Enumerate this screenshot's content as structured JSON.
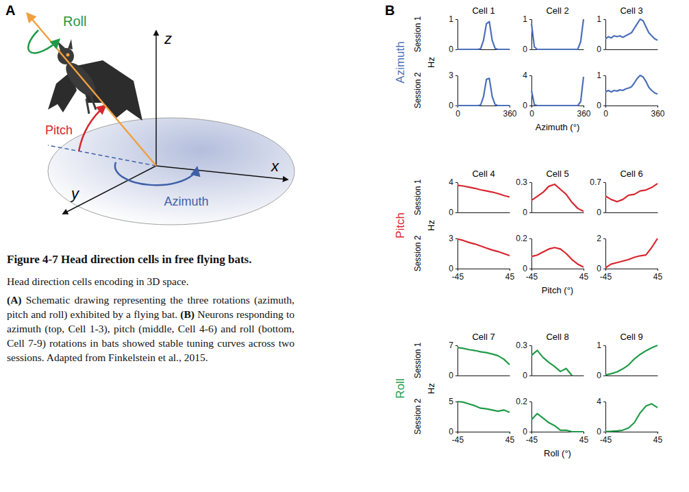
{
  "panel_labels": [
    "A",
    "B"
  ],
  "diagram": {
    "rotations": [
      "Roll",
      "Pitch",
      "Azimuth"
    ],
    "axes": [
      "z",
      "x",
      "y"
    ]
  },
  "caption": {
    "title": "Figure 4-7 Head direction cells in free flying bats.",
    "paragraphs": [
      [
        "Head direction cells encoding in 3D space."
      ],
      [
        "(A)",
        " Schematic drawing representing the three rotations (azimuth, pitch and roll) exhibited by a flying bat. ",
        "(B)",
        " Neurons responding to azimuth (top, Cell 1-3), pitch (middle, Cell 4-6) and roll (bottom, Cell 7-9) rotations in bats showed stable tuning curves across two sessions. Adapted from Finkelstein et al., 2015."
      ]
    ]
  },
  "groups": [
    {
      "name": "Azimuth",
      "ylabel": "Hz",
      "xlabel": "Azimuth (°)",
      "sessions": [
        "Session 1",
        "Session 2"
      ]
    },
    {
      "name": "Pitch",
      "ylabel": "Hz",
      "xlabel": "Pitch (°)",
      "sessions": [
        "Session 1",
        "Session 2"
      ]
    },
    {
      "name": "Roll",
      "ylabel": "Hz",
      "xlabel": "Roll (°)",
      "sessions": [
        "Session 1",
        "Session 2"
      ]
    }
  ],
  "chart_data": [
    {
      "type": "line",
      "title": "Cell 1",
      "color": "#4c6fb8",
      "x": [
        0,
        20,
        40,
        60,
        80,
        100,
        120,
        140,
        160,
        180,
        200,
        220,
        240,
        260,
        280,
        300,
        320,
        340,
        360
      ],
      "values": [
        0,
        0,
        0,
        0,
        0,
        0,
        0,
        0,
        0.02,
        0.3,
        0.85,
        0.92,
        0.3,
        0.03,
        0,
        0,
        0,
        0,
        0
      ],
      "xlim": [
        0,
        360
      ],
      "ylim": [
        0,
        1
      ],
      "yticks": [
        0,
        1
      ],
      "tick_labels": "y"
    },
    {
      "type": "line",
      "title": "Cell 2",
      "color": "#4c6fb8",
      "x": [
        0,
        20,
        40,
        60,
        80,
        100,
        120,
        140,
        160,
        180,
        200,
        220,
        240,
        260,
        280,
        300,
        320,
        340,
        360
      ],
      "values": [
        0.85,
        0.08,
        0,
        0,
        0,
        0,
        0,
        0,
        0,
        0,
        0,
        0,
        0,
        0,
        0,
        0,
        0,
        0.25,
        1.0
      ],
      "xlim": [
        0,
        360
      ],
      "ylim": [
        0,
        1
      ],
      "yticks": [
        0,
        1
      ],
      "tick_labels": "y"
    },
    {
      "type": "line",
      "title": "Cell 3",
      "color": "#4c6fb8",
      "x": [
        0,
        20,
        40,
        60,
        80,
        100,
        120,
        140,
        160,
        180,
        200,
        220,
        240,
        260,
        280,
        300,
        320,
        340,
        360
      ],
      "values": [
        0.35,
        0.42,
        0.38,
        0.45,
        0.42,
        0.45,
        0.4,
        0.45,
        0.5,
        0.55,
        0.7,
        0.85,
        1.0,
        0.95,
        0.75,
        0.55,
        0.45,
        0.35,
        0.3
      ],
      "xlim": [
        0,
        360
      ],
      "ylim": [
        0,
        1
      ],
      "yticks": [
        0,
        1
      ],
      "tick_labels": "y"
    },
    {
      "type": "line",
      "color": "#4c6fb8",
      "x": [
        0,
        20,
        40,
        60,
        80,
        100,
        120,
        140,
        160,
        180,
        200,
        220,
        240,
        260,
        280,
        300,
        320,
        340,
        360
      ],
      "values": [
        0,
        0,
        0,
        0,
        0,
        0,
        0,
        0,
        0.05,
        0.9,
        2.6,
        2.7,
        0.9,
        0.1,
        0,
        0,
        0,
        0,
        0
      ],
      "xlim": [
        0,
        360
      ],
      "xticks": [
        0,
        360
      ],
      "ylim": [
        0,
        3
      ],
      "yticks": [
        0,
        3
      ]
    },
    {
      "type": "line",
      "color": "#4c6fb8",
      "x": [
        0,
        20,
        40,
        60,
        80,
        100,
        120,
        140,
        160,
        180,
        200,
        220,
        240,
        260,
        280,
        300,
        320,
        340,
        360
      ],
      "values": [
        2.0,
        0.1,
        0,
        0,
        0,
        0,
        0,
        0,
        0,
        0,
        0,
        0,
        0,
        0,
        0,
        0,
        0,
        0.5,
        3.8
      ],
      "xlim": [
        0,
        360
      ],
      "xticks": [
        0,
        360
      ],
      "ylim": [
        0,
        4
      ],
      "yticks": [
        0,
        4
      ]
    },
    {
      "type": "line",
      "color": "#4c6fb8",
      "x": [
        0,
        20,
        40,
        60,
        80,
        100,
        120,
        140,
        160,
        180,
        200,
        220,
        240,
        260,
        280,
        300,
        320,
        340,
        360
      ],
      "values": [
        0.45,
        0.5,
        0.45,
        0.5,
        0.48,
        0.52,
        0.5,
        0.55,
        0.58,
        0.62,
        0.75,
        0.9,
        1.0,
        0.95,
        0.8,
        0.6,
        0.5,
        0.42,
        0.38
      ],
      "xlim": [
        0,
        360
      ],
      "xticks": [
        0,
        360
      ],
      "ylim": [
        0,
        1
      ],
      "yticks": [
        0,
        1
      ]
    },
    {
      "type": "line",
      "title": "Cell 4",
      "color": "#d7262e",
      "x": [
        -45,
        -35,
        -25,
        -15,
        -5,
        5,
        15,
        25,
        35,
        45
      ],
      "values": [
        3.6,
        3.5,
        3.35,
        3.2,
        3.0,
        2.85,
        2.7,
        2.5,
        2.25,
        2.05
      ],
      "xlim": [
        -45,
        45
      ],
      "ylim": [
        0,
        4
      ],
      "yticks": [
        0,
        4
      ],
      "tick_labels": "y"
    },
    {
      "type": "line",
      "title": "Cell 5",
      "color": "#d7262e",
      "x": [
        -45,
        -35,
        -25,
        -15,
        -5,
        5,
        15,
        25,
        35,
        45
      ],
      "values": [
        0.12,
        0.16,
        0.2,
        0.26,
        0.28,
        0.23,
        0.18,
        0.1,
        0.04,
        0.01
      ],
      "xlim": [
        -45,
        45
      ],
      "ylim": [
        0,
        0.3
      ],
      "yticks": [
        0,
        0.3
      ],
      "tick_labels": "y"
    },
    {
      "type": "line",
      "title": "Cell 6",
      "color": "#d7262e",
      "x": [
        -45,
        -35,
        -25,
        -15,
        -5,
        5,
        15,
        25,
        35,
        45
      ],
      "values": [
        0.38,
        0.3,
        0.25,
        0.3,
        0.4,
        0.42,
        0.5,
        0.52,
        0.58,
        0.67
      ],
      "xlim": [
        -45,
        45
      ],
      "ylim": [
        0,
        0.7
      ],
      "yticks": [
        0,
        0.7
      ],
      "tick_labels": "y"
    },
    {
      "type": "line",
      "color": "#d7262e",
      "x": [
        -45,
        -35,
        -25,
        -15,
        -5,
        5,
        15,
        25,
        35,
        45
      ],
      "values": [
        2.95,
        2.8,
        2.6,
        2.45,
        2.25,
        2.05,
        1.85,
        1.7,
        1.5,
        1.3
      ],
      "xlim": [
        -45,
        45
      ],
      "xticks": [
        -45,
        45
      ],
      "ylim": [
        0,
        3
      ],
      "yticks": [
        0,
        3
      ]
    },
    {
      "type": "line",
      "color": "#d7262e",
      "x": [
        -45,
        -35,
        -25,
        -15,
        -5,
        5,
        15,
        25,
        35,
        45
      ],
      "values": [
        0.08,
        0.09,
        0.11,
        0.13,
        0.14,
        0.13,
        0.1,
        0.06,
        0.03,
        0.01
      ],
      "xlim": [
        -45,
        45
      ],
      "xticks": [
        -45,
        45
      ],
      "ylim": [
        0,
        0.2
      ],
      "yticks": [
        0,
        0.2
      ]
    },
    {
      "type": "line",
      "color": "#d7262e",
      "x": [
        -45,
        -35,
        -25,
        -15,
        -5,
        5,
        15,
        25,
        35,
        45
      ],
      "values": [
        0.05,
        0.3,
        0.4,
        0.5,
        0.6,
        0.75,
        0.85,
        0.9,
        1.4,
        2.0
      ],
      "xlim": [
        -45,
        45
      ],
      "xticks": [
        -45,
        45
      ],
      "ylim": [
        0,
        2
      ],
      "yticks": [
        0,
        2
      ]
    },
    {
      "type": "line",
      "title": "Cell 7",
      "color": "#1f9a48",
      "x": [
        -45,
        -35,
        -25,
        -15,
        -5,
        5,
        15,
        25,
        35,
        45
      ],
      "values": [
        6.5,
        6.3,
        6.0,
        5.8,
        5.5,
        5.3,
        5.0,
        4.6,
        3.8,
        2.5
      ],
      "xlim": [
        -45,
        45
      ],
      "ylim": [
        0,
        7
      ],
      "yticks": [
        0,
        7
      ],
      "tick_labels": "y"
    },
    {
      "type": "line",
      "title": "Cell 8",
      "color": "#1f9a48",
      "x": [
        -45,
        -35,
        -25,
        -15,
        -5,
        5,
        15,
        25,
        35,
        45
      ],
      "values": [
        0.2,
        0.25,
        0.18,
        0.13,
        0.09,
        0.04,
        0.07,
        0.0,
        null,
        null
      ],
      "xlim": [
        -45,
        45
      ],
      "ylim": [
        0,
        0.3
      ],
      "yticks": [
        0,
        0.3
      ],
      "tick_labels": "y"
    },
    {
      "type": "line",
      "title": "Cell 9",
      "color": "#1f9a48",
      "x": [
        -45,
        -35,
        -25,
        -15,
        -5,
        5,
        15,
        25,
        35,
        45
      ],
      "values": [
        0.02,
        0.06,
        0.12,
        0.22,
        0.35,
        0.55,
        0.7,
        0.82,
        0.92,
        1.0
      ],
      "xlim": [
        -45,
        45
      ],
      "ylim": [
        0,
        1
      ],
      "yticks": [
        0,
        1
      ],
      "tick_labels": "y"
    },
    {
      "type": "line",
      "color": "#1f9a48",
      "x": [
        -45,
        -35,
        -25,
        -15,
        -5,
        5,
        15,
        25,
        35,
        45
      ],
      "values": [
        5.0,
        4.9,
        4.6,
        4.3,
        3.9,
        3.8,
        3.6,
        3.4,
        3.6,
        3.2
      ],
      "xlim": [
        -45,
        45
      ],
      "xticks": [
        -45,
        45
      ],
      "ylim": [
        0,
        5
      ],
      "yticks": [
        0,
        5
      ]
    },
    {
      "type": "line",
      "color": "#1f9a48",
      "x": [
        -45,
        -35,
        -25,
        -15,
        -5,
        5,
        15,
        25,
        35,
        45
      ],
      "values": [
        0.08,
        0.12,
        0.09,
        0.06,
        0.04,
        0.01,
        0.01,
        0,
        0,
        0
      ],
      "xlim": [
        -45,
        45
      ],
      "xticks": [
        -45,
        45
      ],
      "ylim": [
        0,
        0.2
      ],
      "yticks": [
        0,
        0.2
      ]
    },
    {
      "type": "line",
      "color": "#1f9a48",
      "x": [
        -45,
        -35,
        -25,
        -15,
        -5,
        5,
        15,
        25,
        35,
        45
      ],
      "values": [
        0.02,
        0.05,
        0.1,
        0.2,
        0.5,
        1.2,
        2.5,
        3.4,
        3.7,
        3.2
      ],
      "xlim": [
        -45,
        45
      ],
      "xticks": [
        -45,
        45
      ],
      "ylim": [
        0,
        4
      ],
      "yticks": [
        0,
        4
      ]
    }
  ]
}
